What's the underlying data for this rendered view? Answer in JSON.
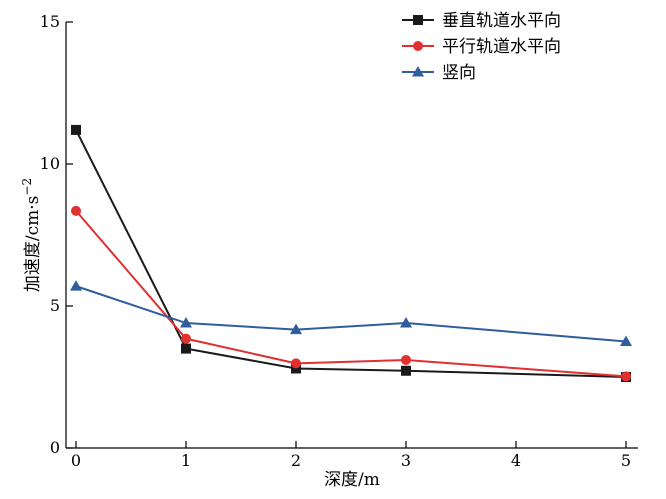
{
  "chart_data": {
    "type": "line",
    "x": [
      0,
      1,
      2,
      3,
      5
    ],
    "xlabel": "深度/m",
    "ylabel": "加速度/cm·s",
    "ylabel_sup": "−2",
    "xlim": [
      0,
      5
    ],
    "ylim": [
      0,
      15
    ],
    "xticks": [
      0,
      1,
      2,
      3,
      4,
      5
    ],
    "yticks": [
      0,
      5,
      10,
      15
    ],
    "grid": false,
    "legend_position": "top-right",
    "series": [
      {
        "name": "垂直轨道水平向",
        "color": "#1a1a1a",
        "marker": "square",
        "values": [
          11.2,
          3.5,
          2.8,
          2.72,
          2.5
        ]
      },
      {
        "name": "平行轨道水平向",
        "color": "#e03030",
        "marker": "circle",
        "values": [
          8.35,
          3.85,
          2.98,
          3.1,
          2.52
        ]
      },
      {
        "name": "竖向",
        "color": "#2f5d9e",
        "marker": "triangle",
        "values": [
          5.7,
          4.4,
          4.17,
          4.4,
          3.75
        ]
      }
    ]
  }
}
